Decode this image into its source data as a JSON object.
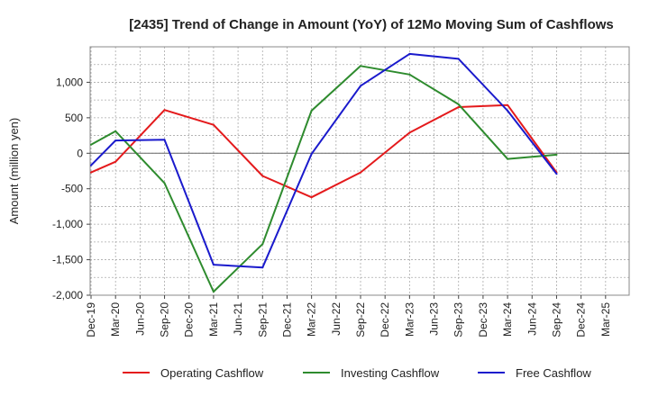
{
  "chart_data": {
    "type": "line",
    "title": "[2435]  Trend of Change in Amount (YoY) of 12Mo Moving Sum of Cashflows",
    "xlabel": "",
    "ylabel": "Amount (million yen)",
    "ylim": [
      -2000,
      1500
    ],
    "yticks": [
      -2000,
      -1500,
      -1000,
      -500,
      0,
      500,
      1000
    ],
    "ytick_labels": [
      "-2,000",
      "-1,500",
      "-1,000",
      "-500",
      "0",
      "500",
      "1,000"
    ],
    "categories": [
      "Dec-19",
      "Mar-20",
      "Jun-20",
      "Sep-20",
      "Dec-20",
      "Mar-21",
      "Jun-21",
      "Sep-21",
      "Dec-21",
      "Mar-22",
      "Jun-22",
      "Sep-22",
      "Dec-22",
      "Mar-23",
      "Jun-23",
      "Sep-23",
      "Dec-23",
      "Mar-24",
      "Jun-24",
      "Sep-24",
      "Dec-24",
      "Mar-25"
    ],
    "grid": true,
    "legend_position": "bottom",
    "series": [
      {
        "name": "Operating Cashflow",
        "color": "#e41a1c",
        "values": [
          -270,
          -120,
          null,
          610,
          null,
          400,
          null,
          -320,
          null,
          -620,
          null,
          -270,
          null,
          290,
          null,
          650,
          null,
          680,
          null,
          -270,
          null,
          null
        ]
      },
      {
        "name": "Investing Cashflow",
        "color": "#2e8b2e",
        "values": [
          120,
          310,
          null,
          -420,
          null,
          -1950,
          null,
          -1280,
          null,
          600,
          null,
          1230,
          null,
          1110,
          null,
          690,
          null,
          -80,
          null,
          -20,
          null,
          null
        ]
      },
      {
        "name": "Free Cashflow",
        "color": "#1a1acc",
        "values": [
          -170,
          180,
          null,
          190,
          null,
          -1570,
          null,
          -1610,
          null,
          -10,
          null,
          950,
          null,
          1400,
          null,
          1330,
          null,
          600,
          null,
          -290,
          null,
          null
        ]
      }
    ]
  }
}
